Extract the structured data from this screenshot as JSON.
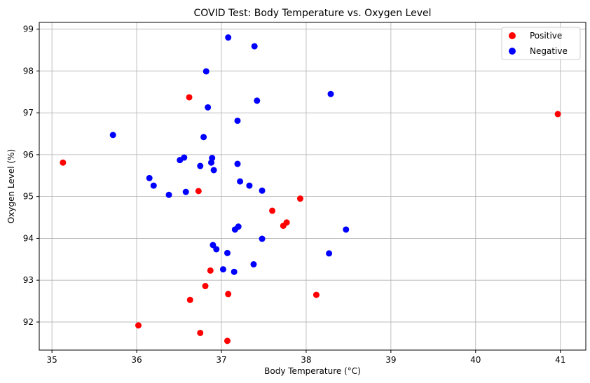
{
  "chart_data": {
    "type": "scatter",
    "title": "COVID Test: Body Temperature vs. Oxygen Level",
    "xlabel": "Body Temperature (°C)",
    "ylabel": "Oxygen Level (%)",
    "xlim": [
      34.85,
      41.3
    ],
    "ylim": [
      91.33,
      99.16
    ],
    "xticks": [
      35,
      36,
      37,
      38,
      39,
      40,
      41
    ],
    "yticks": [
      92,
      93,
      94,
      95,
      96,
      97,
      98,
      99
    ],
    "grid": true,
    "legend_position": "top-right",
    "series": [
      {
        "name": "Positive",
        "color": "#ff0000",
        "points": [
          [
            35.13,
            95.81
          ],
          [
            36.62,
            97.37
          ],
          [
            36.73,
            95.13
          ],
          [
            37.93,
            94.95
          ],
          [
            37.6,
            94.66
          ],
          [
            37.77,
            94.38
          ],
          [
            37.73,
            94.3
          ],
          [
            36.87,
            93.23
          ],
          [
            36.81,
            92.86
          ],
          [
            37.08,
            92.67
          ],
          [
            38.12,
            92.65
          ],
          [
            36.63,
            92.53
          ],
          [
            36.02,
            91.92
          ],
          [
            36.75,
            91.74
          ],
          [
            37.07,
            91.55
          ],
          [
            40.97,
            96.97
          ]
        ]
      },
      {
        "name": "Negative",
        "color": "#0000ff",
        "points": [
          [
            37.08,
            98.8
          ],
          [
            37.39,
            98.59
          ],
          [
            36.82,
            97.99
          ],
          [
            38.29,
            97.45
          ],
          [
            37.42,
            97.29
          ],
          [
            36.84,
            97.13
          ],
          [
            37.19,
            96.81
          ],
          [
            35.72,
            96.47
          ],
          [
            36.79,
            96.42
          ],
          [
            36.56,
            95.93
          ],
          [
            36.51,
            95.87
          ],
          [
            36.89,
            95.92
          ],
          [
            36.88,
            95.81
          ],
          [
            37.19,
            95.78
          ],
          [
            36.75,
            95.73
          ],
          [
            36.91,
            95.63
          ],
          [
            36.15,
            95.44
          ],
          [
            37.22,
            95.36
          ],
          [
            36.2,
            95.26
          ],
          [
            37.33,
            95.26
          ],
          [
            37.48,
            95.14
          ],
          [
            36.58,
            95.11
          ],
          [
            36.38,
            95.04
          ],
          [
            37.2,
            94.28
          ],
          [
            37.16,
            94.21
          ],
          [
            38.47,
            94.21
          ],
          [
            37.48,
            93.99
          ],
          [
            36.9,
            93.84
          ],
          [
            36.94,
            93.74
          ],
          [
            37.07,
            93.65
          ],
          [
            38.27,
            93.64
          ],
          [
            37.38,
            93.38
          ],
          [
            37.02,
            93.26
          ],
          [
            37.15,
            93.2
          ]
        ]
      }
    ]
  }
}
